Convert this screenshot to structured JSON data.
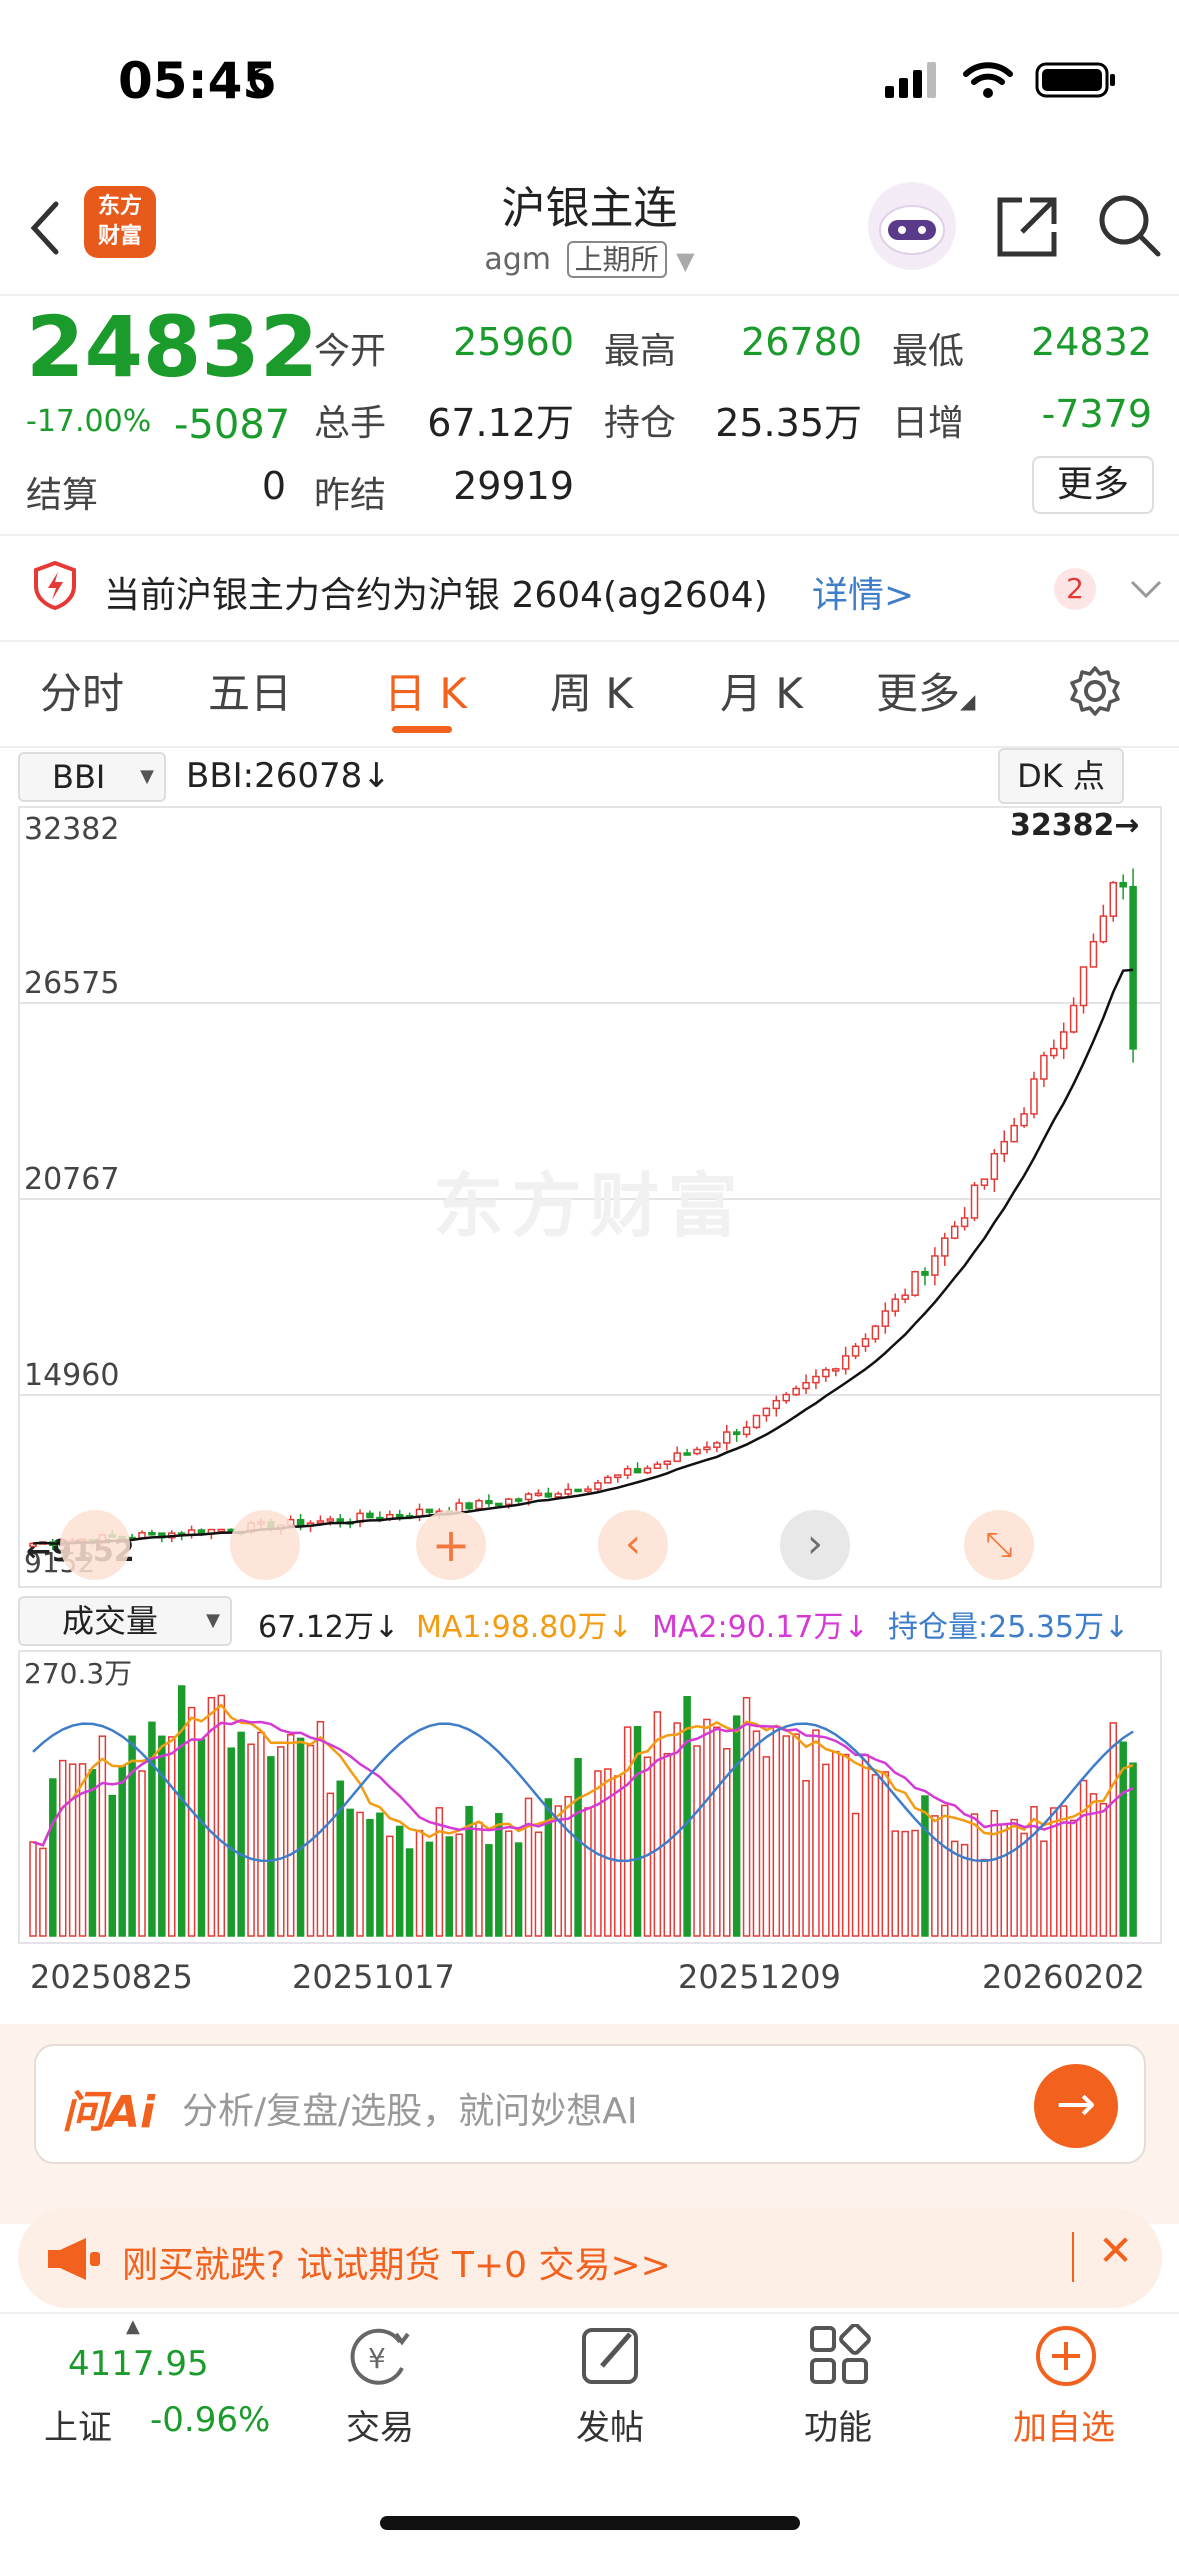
{
  "status": {
    "time": "05:45"
  },
  "nav": {
    "logo_line1": "东方",
    "logo_line2": "财富",
    "title": "沪银主连",
    "code": "agm",
    "exchange": "上期所"
  },
  "quote": {
    "price": "24832",
    "change_pct": "-17.00%",
    "change": "-5087",
    "open_label": "今开",
    "open": "25960",
    "high_label": "最高",
    "high": "26780",
    "low_label": "最低",
    "low": "24832",
    "vol_label": "总手",
    "vol": "67.12万",
    "oi_label": "持仓",
    "oi": "25.35万",
    "daily_inc_label": "日增",
    "daily_inc": "-7379",
    "settle_label": "结算",
    "settle": "0",
    "prev_settle_label": "昨结",
    "prev_settle": "29919",
    "more_label": "更多"
  },
  "notice": {
    "text": "当前沪银主力合约为沪银 2604(ag2604)",
    "link": "详情>",
    "badge": "2"
  },
  "tabs": [
    "分时",
    "五日",
    "日 K",
    "周 K",
    "月 K",
    "更多"
  ],
  "active_tab": 2,
  "kline": {
    "indicator": "BBI",
    "indicator_value": "BBI:26078↓",
    "dk_label": "DK 点",
    "y_labels": [
      "32382",
      "26575",
      "20767",
      "14960",
      "9152"
    ],
    "max_marker": "32382→",
    "min_marker": "←9152",
    "watermark": "东方财富"
  },
  "volume": {
    "selector": "成交量",
    "value": "67.12万↓",
    "ma1": "MA1:98.80万↓",
    "ma2": "MA2:90.17万↓",
    "oi": "持仓量:25.35万↓",
    "top_label": "270.3万",
    "dates": [
      "20250825",
      "20251017",
      "20251209",
      "20260202"
    ]
  },
  "ai": {
    "logo": "问Ai",
    "placeholder": "分析/复盘/选股，就问妙想AI"
  },
  "promo": {
    "text": "刚买就跌? 试试期货 T+0 交易>>"
  },
  "bottom": {
    "index_value": "4117.95",
    "index_name": "上证",
    "index_change": "-0.96%",
    "trade": "交易",
    "post": "发帖",
    "func": "功能",
    "add": "加自选"
  },
  "colors": {
    "up": "#e53935",
    "down": "#1a9b2c",
    "accent": "#f2611d",
    "ma1": "#f39c12",
    "ma2": "#d63ad6",
    "oi": "#3d7dca"
  }
}
